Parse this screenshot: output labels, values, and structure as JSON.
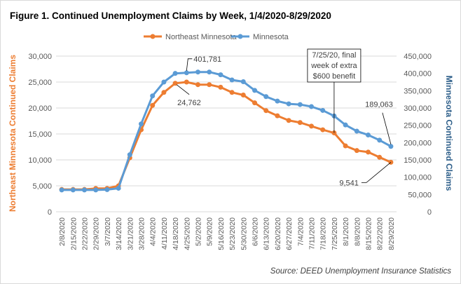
{
  "chart_data": {
    "type": "line",
    "title": "Figure 1. Continued Unemployment Claims by Week, 1/4/2020-8/29/2020",
    "source": "Source: DEED Unemployment Insurance Statistics",
    "y1label": "Northeast Minnesota Continued Claims",
    "y2label": "Minnesota Continued Claims",
    "y1lim": [
      0,
      30000
    ],
    "y2lim": [
      0,
      450000
    ],
    "y1ticks": [
      "0",
      "5,000",
      "10,000",
      "15,000",
      "20,000",
      "25,000",
      "30,000"
    ],
    "y2ticks": [
      "0",
      "50,000",
      "100,000",
      "150,000",
      "200,000",
      "250,000",
      "300,000",
      "350,000",
      "400,000",
      "450,000"
    ],
    "grid": true,
    "legend_position": "top",
    "x": [
      "2/8/2020",
      "2/15/2020",
      "2/22/2020",
      "2/29/2020",
      "3/7/2020",
      "3/14/2020",
      "3/21/2020",
      "3/28/2020",
      "4/4/2020",
      "4/11/2020",
      "4/18/2020",
      "4/25/2020",
      "5/2/2020",
      "5/9/2020",
      "5/16/2020",
      "5/23/2020",
      "5/30/2020",
      "6/6/2020",
      "6/13/2020",
      "6/20/2020",
      "6/27/2020",
      "7/4/2020",
      "7/11/2020",
      "7/18/2020",
      "7/25/2020",
      "8/1/2020",
      "8/8/2020",
      "8/15/2020",
      "8/22/2020",
      "8/29/2020"
    ],
    "series": [
      {
        "name": "Northeast Minnesota",
        "axis": "left",
        "color": "#ed7d31",
        "values": [
          4300,
          4300,
          4300,
          4500,
          4500,
          5000,
          10400,
          15800,
          20500,
          23000,
          24762,
          25000,
          24500,
          24500,
          24000,
          23000,
          22500,
          21000,
          19500,
          18500,
          17600,
          17200,
          16500,
          15800,
          15200,
          12700,
          11800,
          11500,
          10500,
          9541
        ]
      },
      {
        "name": "Minnesota",
        "axis": "right",
        "color": "#5b9bd5",
        "values": [
          63000,
          63000,
          63000,
          63000,
          64000,
          68000,
          165000,
          254000,
          335000,
          375000,
          400000,
          401781,
          404000,
          404000,
          396000,
          381000,
          376000,
          351000,
          333000,
          320000,
          312000,
          310000,
          304000,
          293000,
          277000,
          251000,
          233000,
          222000,
          207000,
          189063
        ]
      }
    ],
    "annotations": [
      {
        "text": "401,781",
        "series": 1,
        "index": 11
      },
      {
        "text": "24,762",
        "series": 0,
        "index": 10
      },
      {
        "text": "189,063",
        "series": 1,
        "index": 29
      },
      {
        "text": "9,541",
        "series": 0,
        "index": 29
      },
      {
        "lines": [
          "7/25/20, final",
          "week of extra",
          "$600 benefit"
        ],
        "series": 0,
        "index": 24
      }
    ]
  }
}
